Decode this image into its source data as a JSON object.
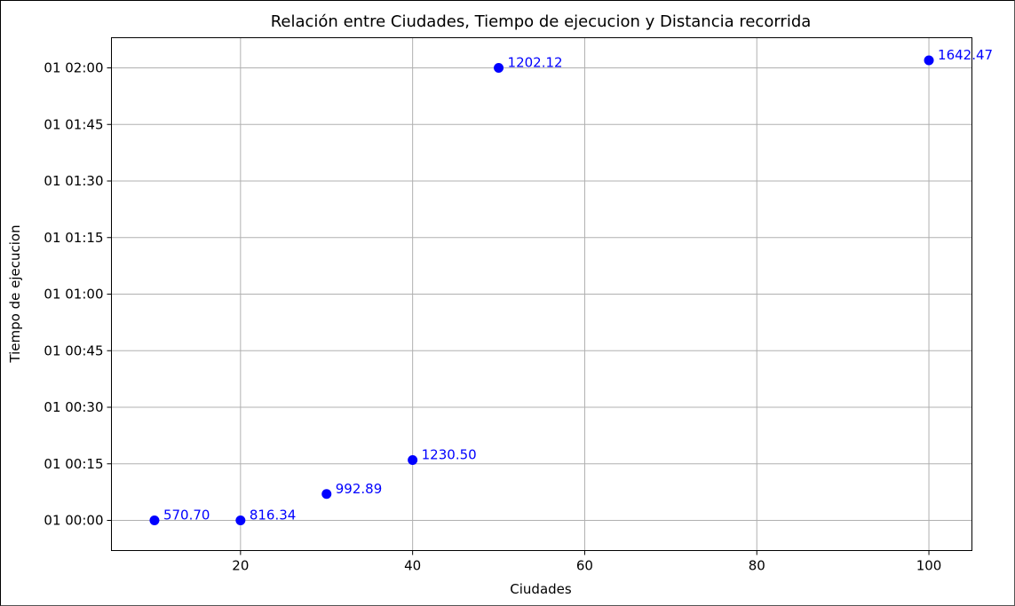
{
  "chart_data": {
    "type": "scatter",
    "title": "Relación entre Ciudades, Tiempo de ejecucion y Distancia recorrida",
    "xlabel": "Ciudades",
    "ylabel": "Tiempo de ejecucion",
    "x": [
      10,
      20,
      30,
      40,
      50,
      100
    ],
    "y": [
      "01 00:00:00",
      "01 00:00:00",
      "01 00:07:00",
      "01 00:16:00",
      "01 02:00:00",
      "01 02:02:00"
    ],
    "point_labels": [
      "570.70",
      "816.34",
      "992.89",
      "1230.50",
      "1202.12",
      "1642.47"
    ],
    "xlim": [
      5,
      105
    ],
    "ylim": [
      "00 23:52:00",
      "01 02:08:00"
    ],
    "xticks": [
      20,
      40,
      60,
      80,
      100
    ],
    "xtick_labels": [
      "20",
      "40",
      "60",
      "80",
      "100"
    ],
    "yticks": [
      "01 00:00",
      "01 00:15",
      "01 00:30",
      "01 00:45",
      "01 01:00",
      "01 01:15",
      "01 01:30",
      "01 01:45",
      "01 02:00"
    ],
    "ytick_labels": [
      "01 00:00",
      "01 00:15",
      "01 00:30",
      "01 00:45",
      "01 01:00",
      "01 01:15",
      "01 01:30",
      "01 01:45",
      "01 02:00"
    ],
    "grid": true,
    "point_color": "#0000ff",
    "label_color": "#0000ff",
    "grid_color": "#b0b0b0"
  }
}
